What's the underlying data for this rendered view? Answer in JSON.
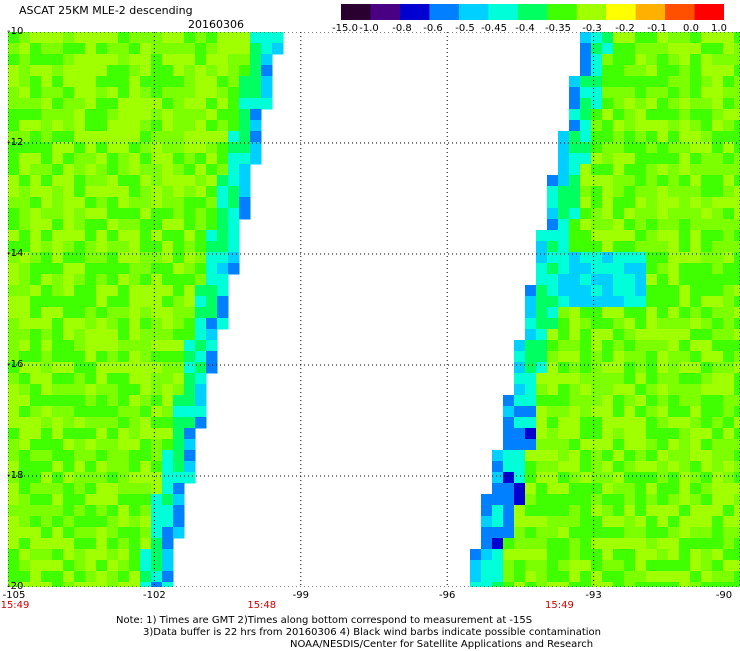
{
  "header": {
    "title": "ASCAT 25KM MLE-2 descending",
    "date": "20160306"
  },
  "colorbar": {
    "labels": [
      "-15.0",
      "-1.0",
      "-0.8",
      "-0.6",
      "-0.5",
      "-0.45",
      "-0.4",
      "-0.35",
      "-0.3",
      "-0.2",
      "-0.1",
      "0.0",
      "1.0"
    ],
    "colors": [
      "#2a0030",
      "#4a0082",
      "#0000d0",
      "#0080ff",
      "#00d0ff",
      "#00ffd8",
      "#00ff60",
      "#40ff00",
      "#a0ff00",
      "#ffff00",
      "#ffb000",
      "#ff5000",
      "#ff0000"
    ]
  },
  "map": {
    "lon_range": [
      -105,
      -90
    ],
    "lat_range": [
      -20,
      -10
    ],
    "lat_labels": [
      "-10",
      "-12",
      "-14",
      "-16",
      "-18",
      "-20"
    ],
    "lon_labels": [
      "-105",
      "-102",
      "-99",
      "-96",
      "-93",
      "-90"
    ],
    "time_labels": [
      {
        "lon": -105,
        "text": "15:49"
      },
      {
        "lon": -99.8,
        "text": "15:48"
      },
      {
        "lon": -93.7,
        "text": "15:49"
      }
    ],
    "grid": true
  },
  "notes": {
    "line1": "Note: 1) Times are GMT 2)Times along bottom correspond to measurement at -15S",
    "line2": "3)Data buffer is 22 hrs from 20160306 4) Black wind barbs indicate possible contamination",
    "line3": "NOAA/NESDIS/Center for Satellite Applications and Research"
  }
}
